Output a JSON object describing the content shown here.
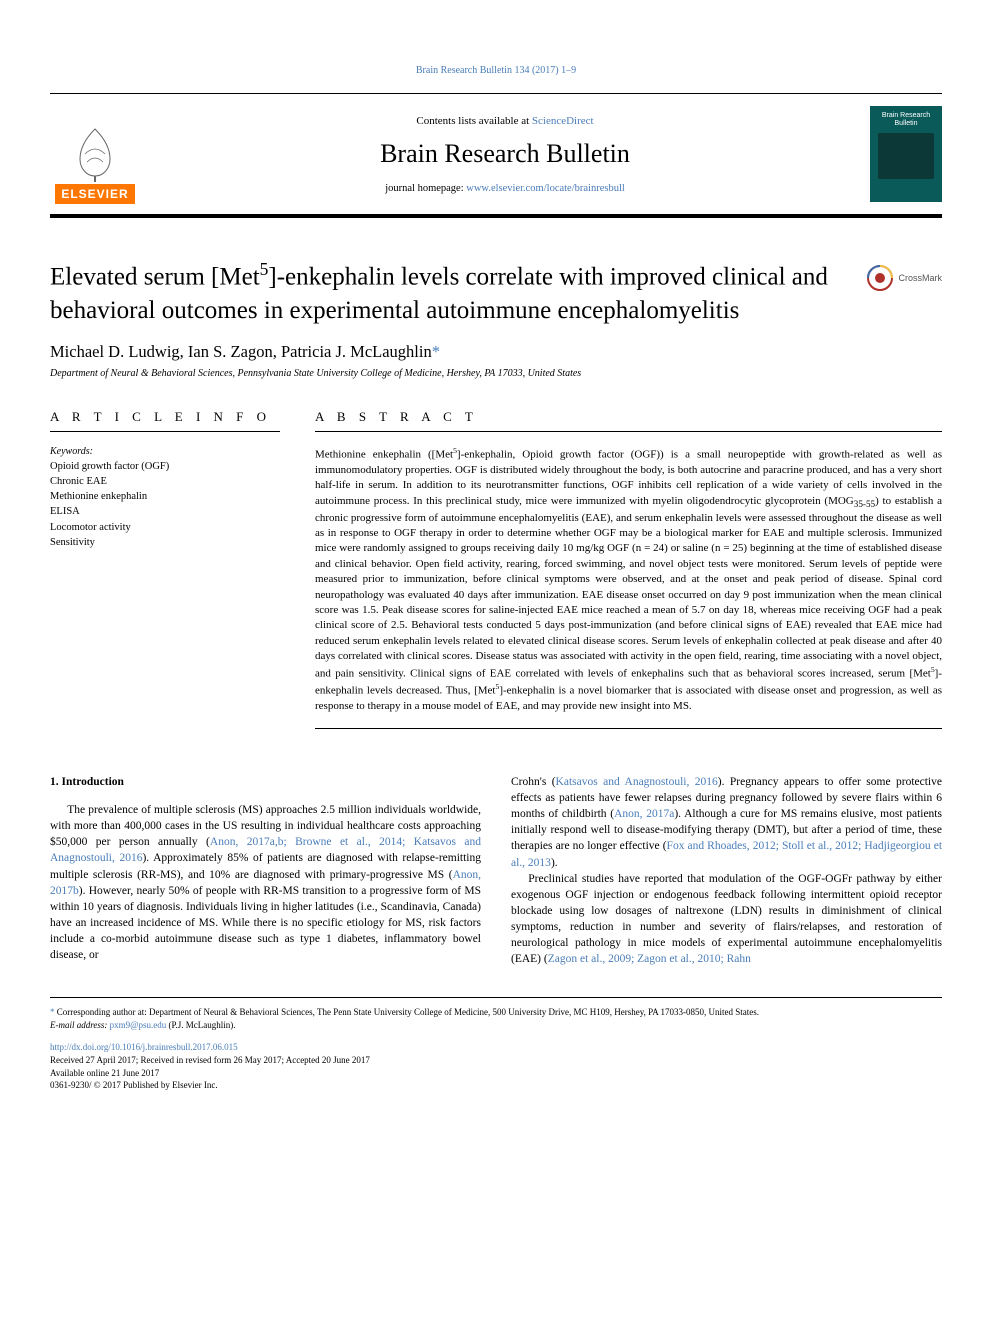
{
  "header": {
    "journal_ref": "Brain Research Bulletin 134 (2017) 1–9",
    "contents_text": "Contents lists available at ",
    "contents_link": "ScienceDirect",
    "journal_name": "Brain Research Bulletin",
    "homepage_label": "journal homepage: ",
    "homepage_url": "www.elsevier.com/locate/brainresbull",
    "elsevier_label": "ELSEVIER",
    "cover_title": "Brain Research Bulletin"
  },
  "article": {
    "title_html": "Elevated serum [Met<sup>5</sup>]-enkephalin levels correlate with improved clinical and behavioral outcomes in experimental autoimmune encephalomyelitis",
    "crossmark_label": "CrossMark",
    "authors_html": "Michael D. Ludwig, Ian S. Zagon, Patricia J. McLaughlin<span class=\"asterisk\">*</span>",
    "affiliation": "Department of Neural & Behavioral Sciences, Pennsylvania State University College of Medicine, Hershey, PA 17033, United States"
  },
  "info": {
    "heading": "A R T I C L E  I N F O",
    "keywords_label": "Keywords:",
    "keywords": [
      "Opioid growth factor (OGF)",
      "Chronic EAE",
      "Methionine enkephalin",
      "ELISA",
      "Locomotor activity",
      "Sensitivity"
    ]
  },
  "abstract": {
    "heading": "A B S T R A C T",
    "text_html": "Methionine enkephalin ([Met<sup>5</sup>]-enkephalin, Opioid growth factor (OGF)) is a small neuropeptide with growth-related as well as immunomodulatory properties. OGF is distributed widely throughout the body, is both autocrine and paracrine produced, and has a very short half-life in serum. In addition to its neurotransmitter functions, OGF inhibits cell replication of a wide variety of cells involved in the autoimmune process. In this preclinical study, mice were immunized with myelin oligodendrocytic glycoprotein (MOG<sub>35-55</sub>) to establish a chronic progressive form of autoimmune encephalomyelitis (EAE), and serum enkephalin levels were assessed throughout the disease as well as in response to OGF therapy in order to determine whether OGF may be a biological marker for EAE and multiple sclerosis. Immunized mice were randomly assigned to groups receiving daily 10 mg/kg OGF (n = 24) or saline (n = 25) beginning at the time of established disease and clinical behavior. Open field activity, rearing, forced swimming, and novel object tests were monitored. Serum levels of peptide were measured prior to immunization, before clinical symptoms were observed, and at the onset and peak period of disease. Spinal cord neuropathology was evaluated 40 days after immunization. EAE disease onset occurred on day 9 post immunization when the mean clinical score was 1.5. Peak disease scores for saline-injected EAE mice reached a mean of 5.7 on day 18, whereas mice receiving OGF had a peak clinical score of 2.5. Behavioral tests conducted 5 days post-immunization (and before clinical signs of EAE) revealed that EAE mice had reduced serum enkephalin levels related to elevated clinical disease scores. Serum levels of enkephalin collected at peak disease and after 40 days correlated with clinical scores. Disease status was associated with activity in the open field, rearing, time associating with a novel object, and pain sensitivity. Clinical signs of EAE correlated with levels of enkephalins such that as behavioral scores increased, serum [Met<sup>5</sup>]-enkephalin levels decreased. Thus, [Met<sup>5</sup>]-enkephalin is a novel biomarker that is associated with disease onset and progression, as well as response to therapy in a mouse model of EAE, and may provide new insight into MS."
  },
  "body": {
    "section_heading": "1. Introduction",
    "para1_html": "The prevalence of multiple sclerosis (MS) approaches 2.5 million individuals worldwide, with more than 400,000 cases in the US resulting in individual healthcare costs approaching $50,000 per person annually (<span class=\"cite\">Anon, 2017a,b; Browne et al., 2014; Katsavos and Anagnostouli, 2016</span>). Approximately 85% of patients are diagnosed with relapse-remitting multiple sclerosis (RR-MS), and 10% are diagnosed with primary-progressive MS (<span class=\"cite\">Anon, 2017b</span>). However, nearly 50% of people with RR-MS transition to a progressive form of MS within 10 years of diagnosis. Individuals living in higher latitudes (i.e., Scandinavia, Canada) have an increased incidence of MS. While there is no specific etiology for MS, risk factors include a co-morbid autoimmune disease such as type 1 diabetes, inflammatory bowel disease, or",
    "para2_html": "Crohn's (<span class=\"cite\">Katsavos and Anagnostouli, 2016</span>). Pregnancy appears to offer some protective effects as patients have fewer relapses during pregnancy followed by severe flairs within 6 months of childbirth (<span class=\"cite\">Anon, 2017a</span>). Although a cure for MS remains elusive, most patients initially respond well to disease-modifying therapy (DMT), but after a period of time, these therapies are no longer effective (<span class=\"cite\">Fox and Rhoades, 2012; Stoll et al., 2012; Hadjigeorgiou et al., 2013</span>).",
    "para3_html": "Preclinical studies have reported that modulation of the OGF-OGFr pathway by either exogenous OGF injection or endogenous feedback following intermittent opioid receptor blockade using low dosages of naltrexone (LDN) results in diminishment of clinical symptoms, reduction in number and severity of flairs/relapses, and restoration of neurological pathology in mice models of experimental autoimmune encephalomyelitis (EAE) (<span class=\"cite\">Zagon et al., 2009; Zagon et al., 2010; Rahn</span>"
  },
  "footer": {
    "corr_html": "<span class=\"asterisk\">*</span> Corresponding author at: Department of Neural & Behavioral Sciences, The Penn State University College of Medicine, 500 University Drive, MC H109, Hershey, PA 17033-0850, United States.",
    "email_label": "E-mail address: ",
    "email": "pxm9@psu.edu",
    "email_suffix": " (P.J. McLaughlin).",
    "doi": "http://dx.doi.org/10.1016/j.brainresbull.2017.06.015",
    "received": "Received 27 April 2017; Received in revised form 26 May 2017; Accepted 20 June 2017",
    "available": "Available online 21 June 2017",
    "issn": "0361-9230/ © 2017 Published by Elsevier Inc."
  },
  "colors": {
    "link": "#4a7db8",
    "elsevier_orange": "#ff7700",
    "cover_bg": "#0a5a5a"
  }
}
